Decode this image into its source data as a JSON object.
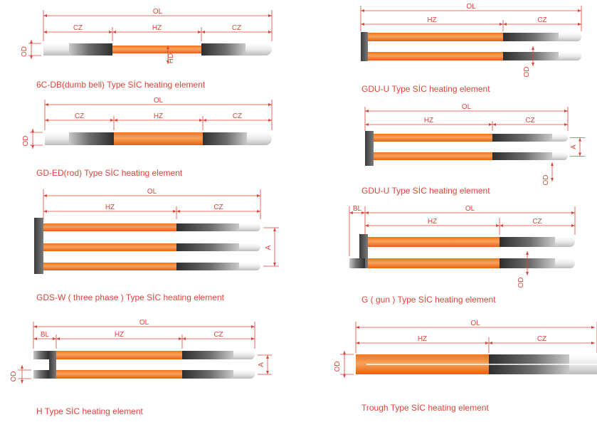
{
  "colors": {
    "dimension": "#e0453a",
    "caption": "#e0453a",
    "hot_zone_dark": "#e8600f",
    "hot_zone_light": "#f7a25c",
    "cold_zone_dark": "#3a3a3a",
    "cold_zone_light": "#b7b7b7",
    "terminal_end": "#e4e4e4",
    "end_cap": "#555555"
  },
  "elements": [
    {
      "id": "6c-db",
      "caption": "6C-DB(dumb bell) Type SİC heating element",
      "dims": [
        "OL",
        "CZ",
        "HZ",
        "CZ",
        "OD",
        "HD"
      ]
    },
    {
      "id": "gdu-u-1",
      "caption": "GDU-U  Type SİC heating element",
      "dims": [
        "OL",
        "HZ",
        "CZ",
        "OD"
      ]
    },
    {
      "id": "gd-ed",
      "caption": "GD-ED(rod) Type SİC heating element",
      "dims": [
        "OL",
        "CZ",
        "HZ",
        "CZ",
        "OD"
      ]
    },
    {
      "id": "gdu-u-2",
      "caption": "GDU-U  Type SİC heating element",
      "dims": [
        "OL",
        "HZ",
        "CZ",
        "A",
        "OD"
      ]
    },
    {
      "id": "gds-w",
      "caption": "GDS-W ( three phase ) Type SİC heating element",
      "dims": [
        "OL",
        "HZ",
        "CZ",
        "A"
      ]
    },
    {
      "id": "g-gun",
      "caption": "G ( gun ) Type SİC heating element",
      "dims": [
        "BL",
        "OL",
        "HZ",
        "CZ",
        "OD"
      ]
    },
    {
      "id": "h-type",
      "caption": "H Type SİC heating element",
      "dims": [
        "OL",
        "BL",
        "HZ",
        "CZ",
        "A",
        "OD"
      ]
    },
    {
      "id": "trough",
      "caption": "Trough Type SİC heating element",
      "dims": [
        "OL",
        "HZ",
        "CZ",
        "OD"
      ]
    }
  ]
}
